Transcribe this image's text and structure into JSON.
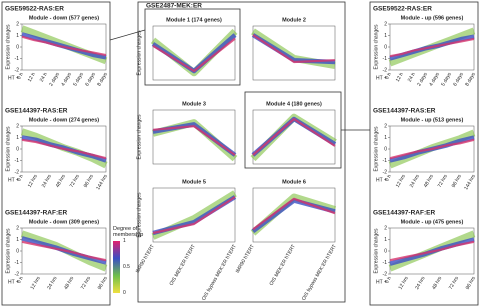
{
  "figure": {
    "middle_title": "GSE2487-MEK:ER",
    "legend": {
      "title": "Degree of membership",
      "colors": [
        "#e0206e",
        "#3b4fc4",
        "#6fbf4a",
        "#f0e040"
      ],
      "ticks": [
        1,
        0.5,
        0
      ],
      "lim": [
        0,
        1
      ]
    }
  },
  "chart_data": [
    {
      "type": "line",
      "title": "GSE59522-RAS:ER",
      "subtitle": "Module - down (577 genes)",
      "y_label": "Expression changes",
      "x_prefix": "HT +",
      "categories": [
        "0 h",
        "12 h",
        "24 h",
        "2 days",
        "4 days",
        "5 days",
        "6 days",
        "8 days"
      ],
      "ylim": [
        -2,
        2
      ],
      "yticks": [
        -2,
        -1,
        0,
        1,
        2
      ],
      "series": [
        {
          "color": "#7fbf3f",
          "values": [
            1.6,
            1.2,
            0.8,
            0.4,
            0.0,
            -0.4,
            -0.8,
            -1.2
          ]
        },
        {
          "color": "#3b4fc4",
          "values": [
            1.1,
            0.8,
            0.5,
            0.2,
            -0.1,
            -0.4,
            -0.7,
            -0.9
          ]
        },
        {
          "color": "#d6336c",
          "values": [
            0.9,
            0.6,
            0.4,
            0.1,
            -0.1,
            -0.3,
            -0.5,
            -0.7
          ]
        }
      ]
    },
    {
      "type": "line",
      "title": "GSE144397-RAS:ER",
      "subtitle": "Module - down (274 genes)",
      "y_label": "Expression changes",
      "x_prefix": "HT +",
      "categories": [
        "0 h",
        "12 hrs",
        "24 hrs",
        "48 hrs",
        "72 hrs",
        "96 hrs",
        "144 hrs"
      ],
      "ylim": [
        -2,
        2
      ],
      "yticks": [
        -2,
        -1,
        0,
        1,
        2
      ],
      "series": [
        {
          "color": "#7fbf3f",
          "values": [
            1.5,
            1.1,
            0.6,
            0.1,
            -0.3,
            -0.8,
            -1.4
          ]
        },
        {
          "color": "#3b4fc4",
          "values": [
            1.0,
            0.8,
            0.4,
            0.1,
            -0.3,
            -0.6,
            -1.0
          ]
        },
        {
          "color": "#d6336c",
          "values": [
            0.8,
            0.6,
            0.3,
            0.0,
            -0.2,
            -0.5,
            -0.8
          ]
        }
      ]
    },
    {
      "type": "line",
      "title": "GSE144397-RAF:ER",
      "subtitle": "Module - down (309 genes)",
      "y_label": "Expression changes",
      "x_prefix": "HT +",
      "categories": [
        "0 h",
        "12 hrs",
        "24 hrs",
        "48 hrs",
        "72 hrs",
        "96 hrs"
      ],
      "ylim": [
        -2,
        2
      ],
      "yticks": [
        -2,
        -1,
        0,
        1,
        2
      ],
      "series": [
        {
          "color": "#7fbf3f",
          "values": [
            1.5,
            1.0,
            0.5,
            -0.2,
            -0.9,
            -1.5
          ]
        },
        {
          "color": "#3b4fc4",
          "values": [
            1.1,
            0.7,
            0.3,
            -0.2,
            -0.6,
            -1.0
          ]
        },
        {
          "color": "#d6336c",
          "values": [
            0.8,
            0.5,
            0.2,
            -0.1,
            -0.5,
            -0.8
          ]
        }
      ]
    },
    {
      "type": "line",
      "title": "GSE59522-RAS:ER",
      "subtitle": "Module - up (596 genes)",
      "y_label": "Expression changes",
      "x_prefix": "HT +",
      "categories": [
        "0 h",
        "12 h",
        "24 h",
        "2 days",
        "4 days",
        "5 days",
        "6 days",
        "8 days"
      ],
      "ylim": [
        -2,
        2
      ],
      "yticks": [
        -2,
        -1,
        0,
        1,
        2
      ],
      "series": [
        {
          "color": "#7fbf3f",
          "values": [
            -1.4,
            -1.0,
            -0.6,
            -0.2,
            0.2,
            0.6,
            1.0,
            1.4
          ]
        },
        {
          "color": "#3b4fc4",
          "values": [
            -1.0,
            -0.7,
            -0.4,
            -0.1,
            0.1,
            0.4,
            0.7,
            0.9
          ]
        },
        {
          "color": "#d6336c",
          "values": [
            -0.8,
            -0.6,
            -0.3,
            -0.1,
            0.1,
            0.3,
            0.5,
            0.7
          ]
        }
      ]
    },
    {
      "type": "line",
      "title": "GSE144397-RAS:ER",
      "subtitle": "Module - up (513 genes)",
      "y_label": "Expression changes",
      "x_prefix": "HT +",
      "categories": [
        "0 h",
        "12 hrs",
        "24 hrs",
        "48 hrs",
        "72 hrs",
        "96 hrs",
        "144 hrs"
      ],
      "ylim": [
        -2,
        2
      ],
      "yticks": [
        -2,
        -1,
        0,
        1,
        2
      ],
      "series": [
        {
          "color": "#7fbf3f",
          "values": [
            -1.4,
            -0.9,
            -0.4,
            0.1,
            0.5,
            0.9,
            1.4
          ]
        },
        {
          "color": "#3b4fc4",
          "values": [
            -1.0,
            -0.7,
            -0.3,
            0.0,
            0.3,
            0.7,
            1.0
          ]
        },
        {
          "color": "#d6336c",
          "values": [
            -0.8,
            -0.5,
            -0.2,
            0.0,
            0.3,
            0.5,
            0.8
          ]
        }
      ]
    },
    {
      "type": "line",
      "title": "GSE144397-RAF:ER",
      "subtitle": "Module - up (475 genes)",
      "y_label": "Expression changes",
      "x_prefix": "HT +",
      "categories": [
        "0 h",
        "12 hrs",
        "24 hrs",
        "48 hrs",
        "72 hrs",
        "96 hrs"
      ],
      "ylim": [
        -2,
        2
      ],
      "yticks": [
        -2,
        -1,
        0,
        1,
        2
      ],
      "series": [
        {
          "color": "#7fbf3f",
          "values": [
            -1.5,
            -0.9,
            -0.3,
            0.3,
            0.9,
            1.5
          ]
        },
        {
          "color": "#3b4fc4",
          "values": [
            -1.1,
            -0.7,
            -0.3,
            0.2,
            0.6,
            1.0
          ]
        },
        {
          "color": "#d6336c",
          "values": [
            -0.8,
            -0.5,
            -0.2,
            0.1,
            0.5,
            0.8
          ]
        }
      ]
    },
    {
      "type": "line",
      "subtitle": "Module 1 (174 genes)",
      "y_label": "Expression changes",
      "ylim": [
        -1.5,
        1.5
      ],
      "series": [
        {
          "color": "#7fbf3f",
          "values": [
            0.7,
            -1.1,
            1.2
          ]
        },
        {
          "color": "#3b4fc4",
          "values": [
            0.5,
            -1.0,
            1.0
          ]
        },
        {
          "color": "#d6336c",
          "values": [
            0.4,
            -1.0,
            0.8
          ]
        }
      ]
    },
    {
      "type": "line",
      "subtitle": "Module 2",
      "ylim": [
        -1.5,
        1.5
      ],
      "series": [
        {
          "color": "#7fbf3f",
          "values": [
            1.2,
            -0.3,
            -0.7
          ]
        },
        {
          "color": "#3b4fc4",
          "values": [
            1.0,
            -0.4,
            -0.5
          ]
        },
        {
          "color": "#d6336c",
          "values": [
            1.0,
            -0.5,
            -0.4
          ]
        }
      ]
    },
    {
      "type": "line",
      "subtitle": "Module 3",
      "y_label": "Expression changes",
      "ylim": [
        -1.5,
        1.5
      ],
      "series": [
        {
          "color": "#7fbf3f",
          "values": [
            0.2,
            0.8,
            -1.2
          ]
        },
        {
          "color": "#3b4fc4",
          "values": [
            0.3,
            0.7,
            -1.0
          ]
        },
        {
          "color": "#d6336c",
          "values": [
            0.4,
            0.6,
            -1.0
          ]
        }
      ]
    },
    {
      "type": "line",
      "subtitle": "Module 4 (180 genes)",
      "ylim": [
        -1.5,
        1.5
      ],
      "series": [
        {
          "color": "#7fbf3f",
          "values": [
            -1.2,
            1.1,
            -0.3
          ]
        },
        {
          "color": "#3b4fc4",
          "values": [
            -1.0,
            1.0,
            -0.4
          ]
        },
        {
          "color": "#d6336c",
          "values": [
            -1.0,
            1.0,
            -0.5
          ]
        }
      ]
    },
    {
      "type": "line",
      "subtitle": "Module 5",
      "y_label": "Expression changes",
      "ylim": [
        -1.5,
        1.5
      ],
      "categories": [
        "IMR90 hTERT",
        "OIS MEK:ER hTERT",
        "OIS bypass MEK:ER hTERT"
      ],
      "series": [
        {
          "color": "#7fbf3f",
          "values": [
            -1.2,
            -0.2,
            1.2
          ]
        },
        {
          "color": "#3b4fc4",
          "values": [
            -1.0,
            -0.4,
            1.0
          ]
        },
        {
          "color": "#d6336c",
          "values": [
            -1.0,
            -0.5,
            1.0
          ]
        }
      ]
    },
    {
      "type": "line",
      "subtitle": "Module 6",
      "ylim": [
        -1.5,
        1.5
      ],
      "categories": [
        "IMR90 hTERT",
        "OIS MEK:ER hTERT",
        "OIS bypass MEK:ER hTERT"
      ],
      "series": [
        {
          "color": "#7fbf3f",
          "values": [
            -1.0,
            1.0,
            0.3
          ]
        },
        {
          "color": "#3b4fc4",
          "values": [
            -0.9,
            0.8,
            0.2
          ]
        },
        {
          "color": "#d6336c",
          "values": [
            -0.8,
            0.9,
            0.1
          ]
        }
      ]
    }
  ]
}
